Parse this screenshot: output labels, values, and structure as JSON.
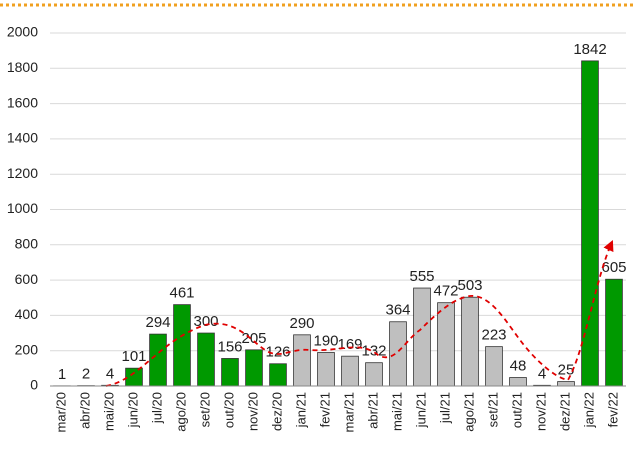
{
  "chart_data": {
    "type": "bar",
    "categories": [
      "mar/20",
      "abr/20",
      "mai/20",
      "jun/20",
      "jul/20",
      "ago/20",
      "set/20",
      "out/20",
      "nov/20",
      "dez/20",
      "jan/21",
      "fev/21",
      "mar/21",
      "abr/21",
      "mai/21",
      "jun/21",
      "jul/21",
      "ago/21",
      "set/21",
      "out/21",
      "nov/21",
      "dez/21",
      "jan/22",
      "fev/22"
    ],
    "values": [
      1,
      2,
      4,
      101,
      294,
      461,
      300,
      156,
      205,
      126,
      290,
      190,
      169,
      132,
      364,
      555,
      472,
      503,
      223,
      48,
      4,
      25,
      1842,
      605
    ],
    "colors": [
      "#bfbfbf",
      "#bfbfbf",
      "#009900",
      "#009900",
      "#009900",
      "#009900",
      "#009900",
      "#009900",
      "#009900",
      "#009900",
      "#bfbfbf",
      "#bfbfbf",
      "#bfbfbf",
      "#bfbfbf",
      "#bfbfbf",
      "#bfbfbf",
      "#bfbfbf",
      "#bfbfbf",
      "#bfbfbf",
      "#bfbfbf",
      "#bfbfbf",
      "#bfbfbf",
      "#009900",
      "#009900"
    ],
    "ylim": [
      0,
      2000
    ],
    "yticks": [
      0,
      200,
      400,
      600,
      800,
      1000,
      1200,
      1400,
      1600,
      1800,
      2000
    ],
    "grid": true
  }
}
